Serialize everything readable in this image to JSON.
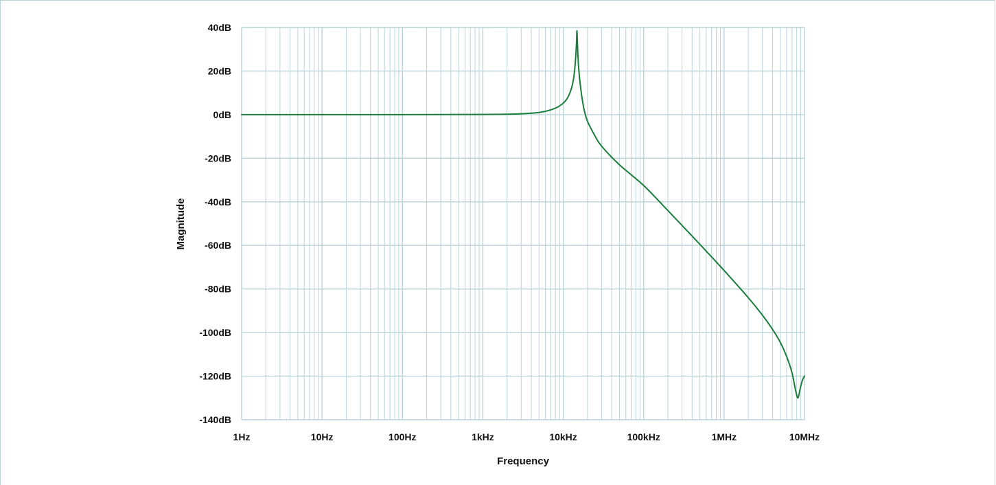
{
  "chart_data": {
    "type": "line",
    "xlabel": "Frequency",
    "ylabel": "Magnitude",
    "x_scale": "log",
    "xlim": [
      1,
      10000000
    ],
    "ylim": [
      -140,
      40
    ],
    "grid": true,
    "x_ticks": [
      {
        "value": 1,
        "label": "1Hz"
      },
      {
        "value": 10,
        "label": "10Hz"
      },
      {
        "value": 100,
        "label": "100Hz"
      },
      {
        "value": 1000,
        "label": "1kHz"
      },
      {
        "value": 10000,
        "label": "10kHz"
      },
      {
        "value": 100000,
        "label": "100kHz"
      },
      {
        "value": 1000000,
        "label": "1MHz"
      },
      {
        "value": 10000000,
        "label": "10MHz"
      }
    ],
    "y_ticks": [
      {
        "value": 40,
        "label": "40dB"
      },
      {
        "value": 20,
        "label": "20dB"
      },
      {
        "value": 0,
        "label": "0dB"
      },
      {
        "value": -20,
        "label": "-20dB"
      },
      {
        "value": -40,
        "label": "-40dB"
      },
      {
        "value": -60,
        "label": "-60dB"
      },
      {
        "value": -80,
        "label": "-80dB"
      },
      {
        "value": -100,
        "label": "-100dB"
      },
      {
        "value": -120,
        "label": "-120dB"
      },
      {
        "value": -140,
        "label": "-140dB"
      }
    ],
    "series": [
      {
        "color": "#1a7d3a",
        "points": [
          [
            1,
            0
          ],
          [
            10,
            0
          ],
          [
            100,
            0
          ],
          [
            1000,
            0.1
          ],
          [
            2000,
            0.2
          ],
          [
            3000,
            0.4
          ],
          [
            5000,
            1.0
          ],
          [
            7000,
            2.2
          ],
          [
            9000,
            4.0
          ],
          [
            11000,
            7.0
          ],
          [
            12500,
            11.5
          ],
          [
            13500,
            17.0
          ],
          [
            14200,
            25.0
          ],
          [
            14600,
            33.0
          ],
          [
            14800,
            38.5
          ],
          [
            15000,
            33.0
          ],
          [
            15500,
            22.0
          ],
          [
            16500,
            12.0
          ],
          [
            18000,
            3.0
          ],
          [
            20000,
            -3.0
          ],
          [
            25000,
            -10.0
          ],
          [
            30000,
            -14.5
          ],
          [
            50000,
            -23.0
          ],
          [
            100000,
            -32.5
          ],
          [
            200000,
            -44.0
          ],
          [
            500000,
            -59.5
          ],
          [
            1000000,
            -71.5
          ],
          [
            2000000,
            -84.0
          ],
          [
            3000000,
            -92.0
          ],
          [
            4000000,
            -98.5
          ],
          [
            5000000,
            -104.5
          ],
          [
            6000000,
            -111.0
          ],
          [
            7000000,
            -118.5
          ],
          [
            7800000,
            -127.0
          ],
          [
            8300000,
            -130.0
          ],
          [
            8800000,
            -126.0
          ],
          [
            9400000,
            -122.0
          ],
          [
            10000000,
            -120.0
          ]
        ]
      }
    ]
  },
  "colors": {
    "grid": "#b9d3d8",
    "curve": "#1a7d3a",
    "text": "#111111"
  }
}
